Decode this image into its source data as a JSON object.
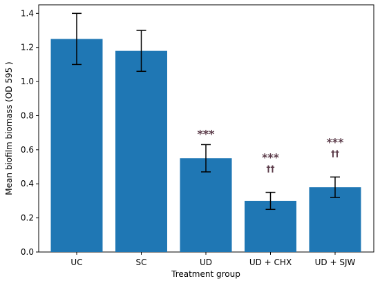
{
  "chart_data": {
    "type": "bar",
    "title": "",
    "xlabel": "Treatment  group",
    "ylabel": "Mean biofilm biomass (OD 595 )",
    "ylim": [
      0,
      1.45
    ],
    "yticks": [
      0.0,
      0.2,
      0.4,
      0.6,
      0.8,
      1.0,
      1.2,
      1.4
    ],
    "ytick_labels": [
      "0.0",
      "0.2",
      "0.4",
      "0.6",
      "0.8",
      "1.0",
      "1.2",
      "1.4"
    ],
    "categories": [
      "UC",
      "SC",
      "UD",
      "UD + CHX",
      "UD + SJW"
    ],
    "values": [
      1.25,
      1.18,
      0.55,
      0.3,
      0.38
    ],
    "error_low": [
      1.1,
      1.06,
      0.47,
      0.25,
      0.32
    ],
    "error_high": [
      1.4,
      1.3,
      0.63,
      0.35,
      0.44
    ],
    "significance": [
      "",
      "",
      "***",
      "***",
      "***"
    ],
    "significance_secondary": [
      "",
      "",
      "",
      "††",
      "††"
    ],
    "bar_color": "#1f77b4",
    "annotation_color": "#5a3a48",
    "grid": false,
    "legend": "none"
  }
}
